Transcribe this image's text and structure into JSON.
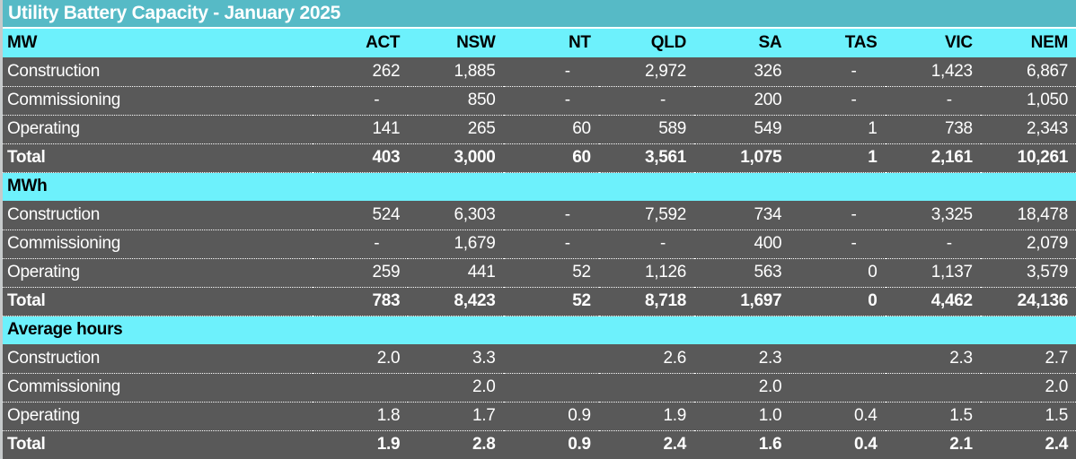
{
  "colors": {
    "title_bg": "#56BAC6",
    "section_bg": "#6DF1FC",
    "row_bg": "#595959",
    "row_text": "#FFFFFF",
    "section_text": "#000000",
    "grid_color": "#FFFFFF",
    "edge_strip": "#C6CACB"
  },
  "chart_data": {
    "type": "table",
    "title": "Utility Battery Capacity - January 2025",
    "column_headers": [
      "ACT",
      "NSW",
      "NT",
      "QLD",
      "SA",
      "TAS",
      "VIC",
      "NEM"
    ],
    "sections": [
      {
        "label": "MW",
        "rows": [
          {
            "label": "Construction",
            "bold": false,
            "values": [
              "262",
              "1,885",
              "-",
              "2,972",
              "326",
              "-",
              "1,423",
              "6,867"
            ]
          },
          {
            "label": "Commissioning",
            "bold": false,
            "values": [
              "-",
              "850",
              "-",
              "-",
              "200",
              "-",
              "-",
              "1,050"
            ]
          },
          {
            "label": "Operating",
            "bold": false,
            "values": [
              "141",
              "265",
              "60",
              "589",
              "549",
              "1",
              "738",
              "2,343"
            ]
          },
          {
            "label": "Total",
            "bold": true,
            "values": [
              "403",
              "3,000",
              "60",
              "3,561",
              "1,075",
              "1",
              "2,161",
              "10,261"
            ]
          }
        ]
      },
      {
        "label": "MWh",
        "rows": [
          {
            "label": "Construction",
            "bold": false,
            "values": [
              "524",
              "6,303",
              "-",
              "7,592",
              "734",
              "-",
              "3,325",
              "18,478"
            ]
          },
          {
            "label": "Commissioning",
            "bold": false,
            "values": [
              "-",
              "1,679",
              "-",
              "-",
              "400",
              "-",
              "-",
              "2,079"
            ]
          },
          {
            "label": "Operating",
            "bold": false,
            "values": [
              "259",
              "441",
              "52",
              "1,126",
              "563",
              "0",
              "1,137",
              "3,579"
            ]
          },
          {
            "label": "Total",
            "bold": true,
            "values": [
              "783",
              "8,423",
              "52",
              "8,718",
              "1,697",
              "0",
              "4,462",
              "24,136"
            ]
          }
        ]
      },
      {
        "label": "Average hours",
        "rows": [
          {
            "label": "Construction",
            "bold": false,
            "values": [
              "2.0",
              "3.3",
              "",
              "2.6",
              "2.3",
              "",
              "2.3",
              "2.7"
            ]
          },
          {
            "label": "Commissioning",
            "bold": false,
            "values": [
              "",
              "2.0",
              "",
              "",
              "2.0",
              "",
              "",
              "2.0"
            ]
          },
          {
            "label": "Operating",
            "bold": false,
            "values": [
              "1.8",
              "1.7",
              "0.9",
              "1.9",
              "1.0",
              "0.4",
              "1.5",
              "1.5"
            ]
          },
          {
            "label": "Total",
            "bold": true,
            "values": [
              "1.9",
              "2.8",
              "0.9",
              "2.4",
              "1.6",
              "0.4",
              "2.1",
              "2.4"
            ]
          }
        ]
      }
    ]
  }
}
